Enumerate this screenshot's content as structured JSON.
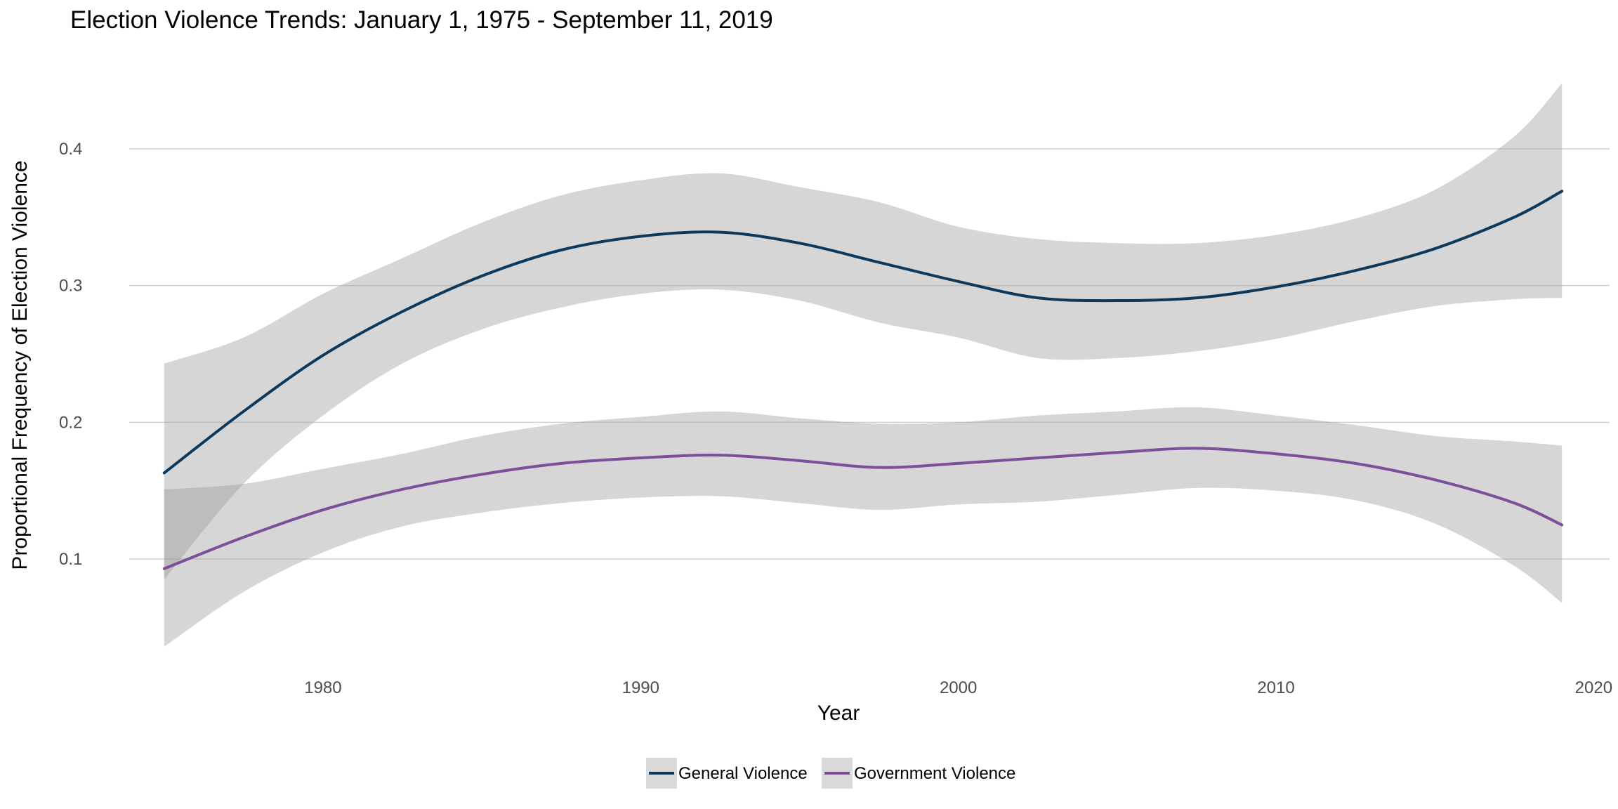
{
  "chart_data": {
    "type": "line",
    "title": "Election Violence Trends: January 1, 1975 - September 11, 2019",
    "xlabel": "Year",
    "ylabel": "Proportional Frequency of Election Violence",
    "xlim": [
      1973.9,
      2020.5
    ],
    "ylim": [
      0.02,
      0.46
    ],
    "x_ticks": [
      1980,
      1990,
      2000,
      2010,
      2020
    ],
    "y_ticks": [
      0.1,
      0.2,
      0.3,
      0.4
    ],
    "grid": "horizontal major lines",
    "legend_position": "bottom",
    "band_color": "#d4d4d4",
    "series": [
      {
        "name": "General Violence",
        "color": "#0d3a5c",
        "x": [
          1975,
          1977.5,
          1980,
          1982.5,
          1985,
          1987.5,
          1990,
          1992.5,
          1995,
          1997.5,
          2000,
          2002.5,
          2005,
          2007.5,
          2010,
          2012.5,
          2015,
          2017.5,
          2019
        ],
        "y": [
          0.163,
          0.208,
          0.249,
          0.281,
          0.307,
          0.326,
          0.336,
          0.339,
          0.331,
          0.317,
          0.303,
          0.291,
          0.289,
          0.291,
          0.299,
          0.311,
          0.327,
          0.35,
          0.369
        ],
        "lower": [
          0.085,
          0.155,
          0.205,
          0.243,
          0.268,
          0.284,
          0.294,
          0.297,
          0.289,
          0.273,
          0.262,
          0.247,
          0.247,
          0.252,
          0.261,
          0.274,
          0.285,
          0.29,
          0.291
        ],
        "upper": [
          0.243,
          0.262,
          0.294,
          0.32,
          0.346,
          0.366,
          0.377,
          0.382,
          0.372,
          0.361,
          0.343,
          0.334,
          0.331,
          0.331,
          0.337,
          0.349,
          0.37,
          0.409,
          0.448
        ]
      },
      {
        "name": "Government Violence",
        "color": "#7b4f99",
        "x": [
          1975,
          1977.5,
          1980,
          1982.5,
          1985,
          1987.5,
          1990,
          1992.5,
          1995,
          1997.5,
          2000,
          2002.5,
          2005,
          2007.5,
          2010,
          2012.5,
          2015,
          2017.5,
          2019
        ],
        "y": [
          0.093,
          0.116,
          0.136,
          0.151,
          0.162,
          0.17,
          0.174,
          0.176,
          0.172,
          0.167,
          0.17,
          0.174,
          0.178,
          0.181,
          0.177,
          0.17,
          0.158,
          0.141,
          0.125
        ],
        "lower": [
          0.036,
          0.076,
          0.105,
          0.124,
          0.134,
          0.141,
          0.145,
          0.146,
          0.141,
          0.136,
          0.14,
          0.142,
          0.147,
          0.152,
          0.15,
          0.143,
          0.126,
          0.095,
          0.068
        ],
        "upper": [
          0.151,
          0.155,
          0.166,
          0.177,
          0.19,
          0.199,
          0.204,
          0.208,
          0.203,
          0.199,
          0.2,
          0.205,
          0.208,
          0.211,
          0.205,
          0.198,
          0.19,
          0.186,
          0.183
        ]
      }
    ]
  }
}
